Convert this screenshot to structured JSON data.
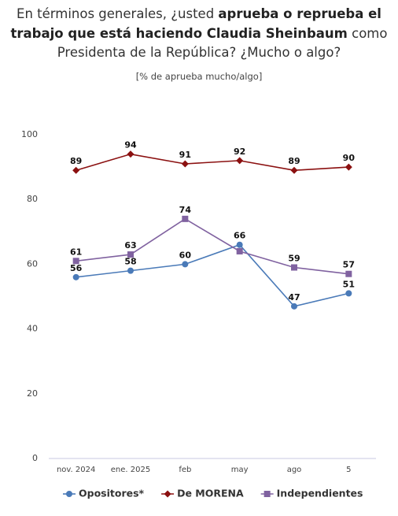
{
  "chart_data": {
    "type": "line",
    "title_segments": [
      "En términos generales, ¿usted ",
      "aprueba o reprueba el trabajo que está haciendo Claudia Sheinbaum",
      " como Presidenta de la República? ¿Mucho o algo?"
    ],
    "subtitle": "[% de aprueba mucho/algo]",
    "categories": [
      "nov. 2024",
      "ene. 2025",
      "feb",
      "may",
      "ago",
      "5"
    ],
    "series": [
      {
        "name": "Opositores*",
        "color": "#4a7ab8",
        "marker": "circle",
        "values": [
          56,
          58,
          60,
          66,
          47,
          51
        ]
      },
      {
        "name": "De MORENA",
        "color": "#8b1010",
        "marker": "diamond",
        "values": [
          89,
          94,
          91,
          92,
          89,
          90
        ]
      },
      {
        "name": "Independientes",
        "color": "#8062a0",
        "marker": "square",
        "values": [
          61,
          63,
          74,
          64,
          59,
          57
        ],
        "value_labels": [
          "61",
          "63",
          "74",
          null,
          "59",
          "57"
        ]
      }
    ],
    "ylim": [
      0,
      100
    ],
    "yticks": [
      0,
      20,
      40,
      60,
      80,
      100
    ],
    "grid": false,
    "legend": "bottom"
  }
}
